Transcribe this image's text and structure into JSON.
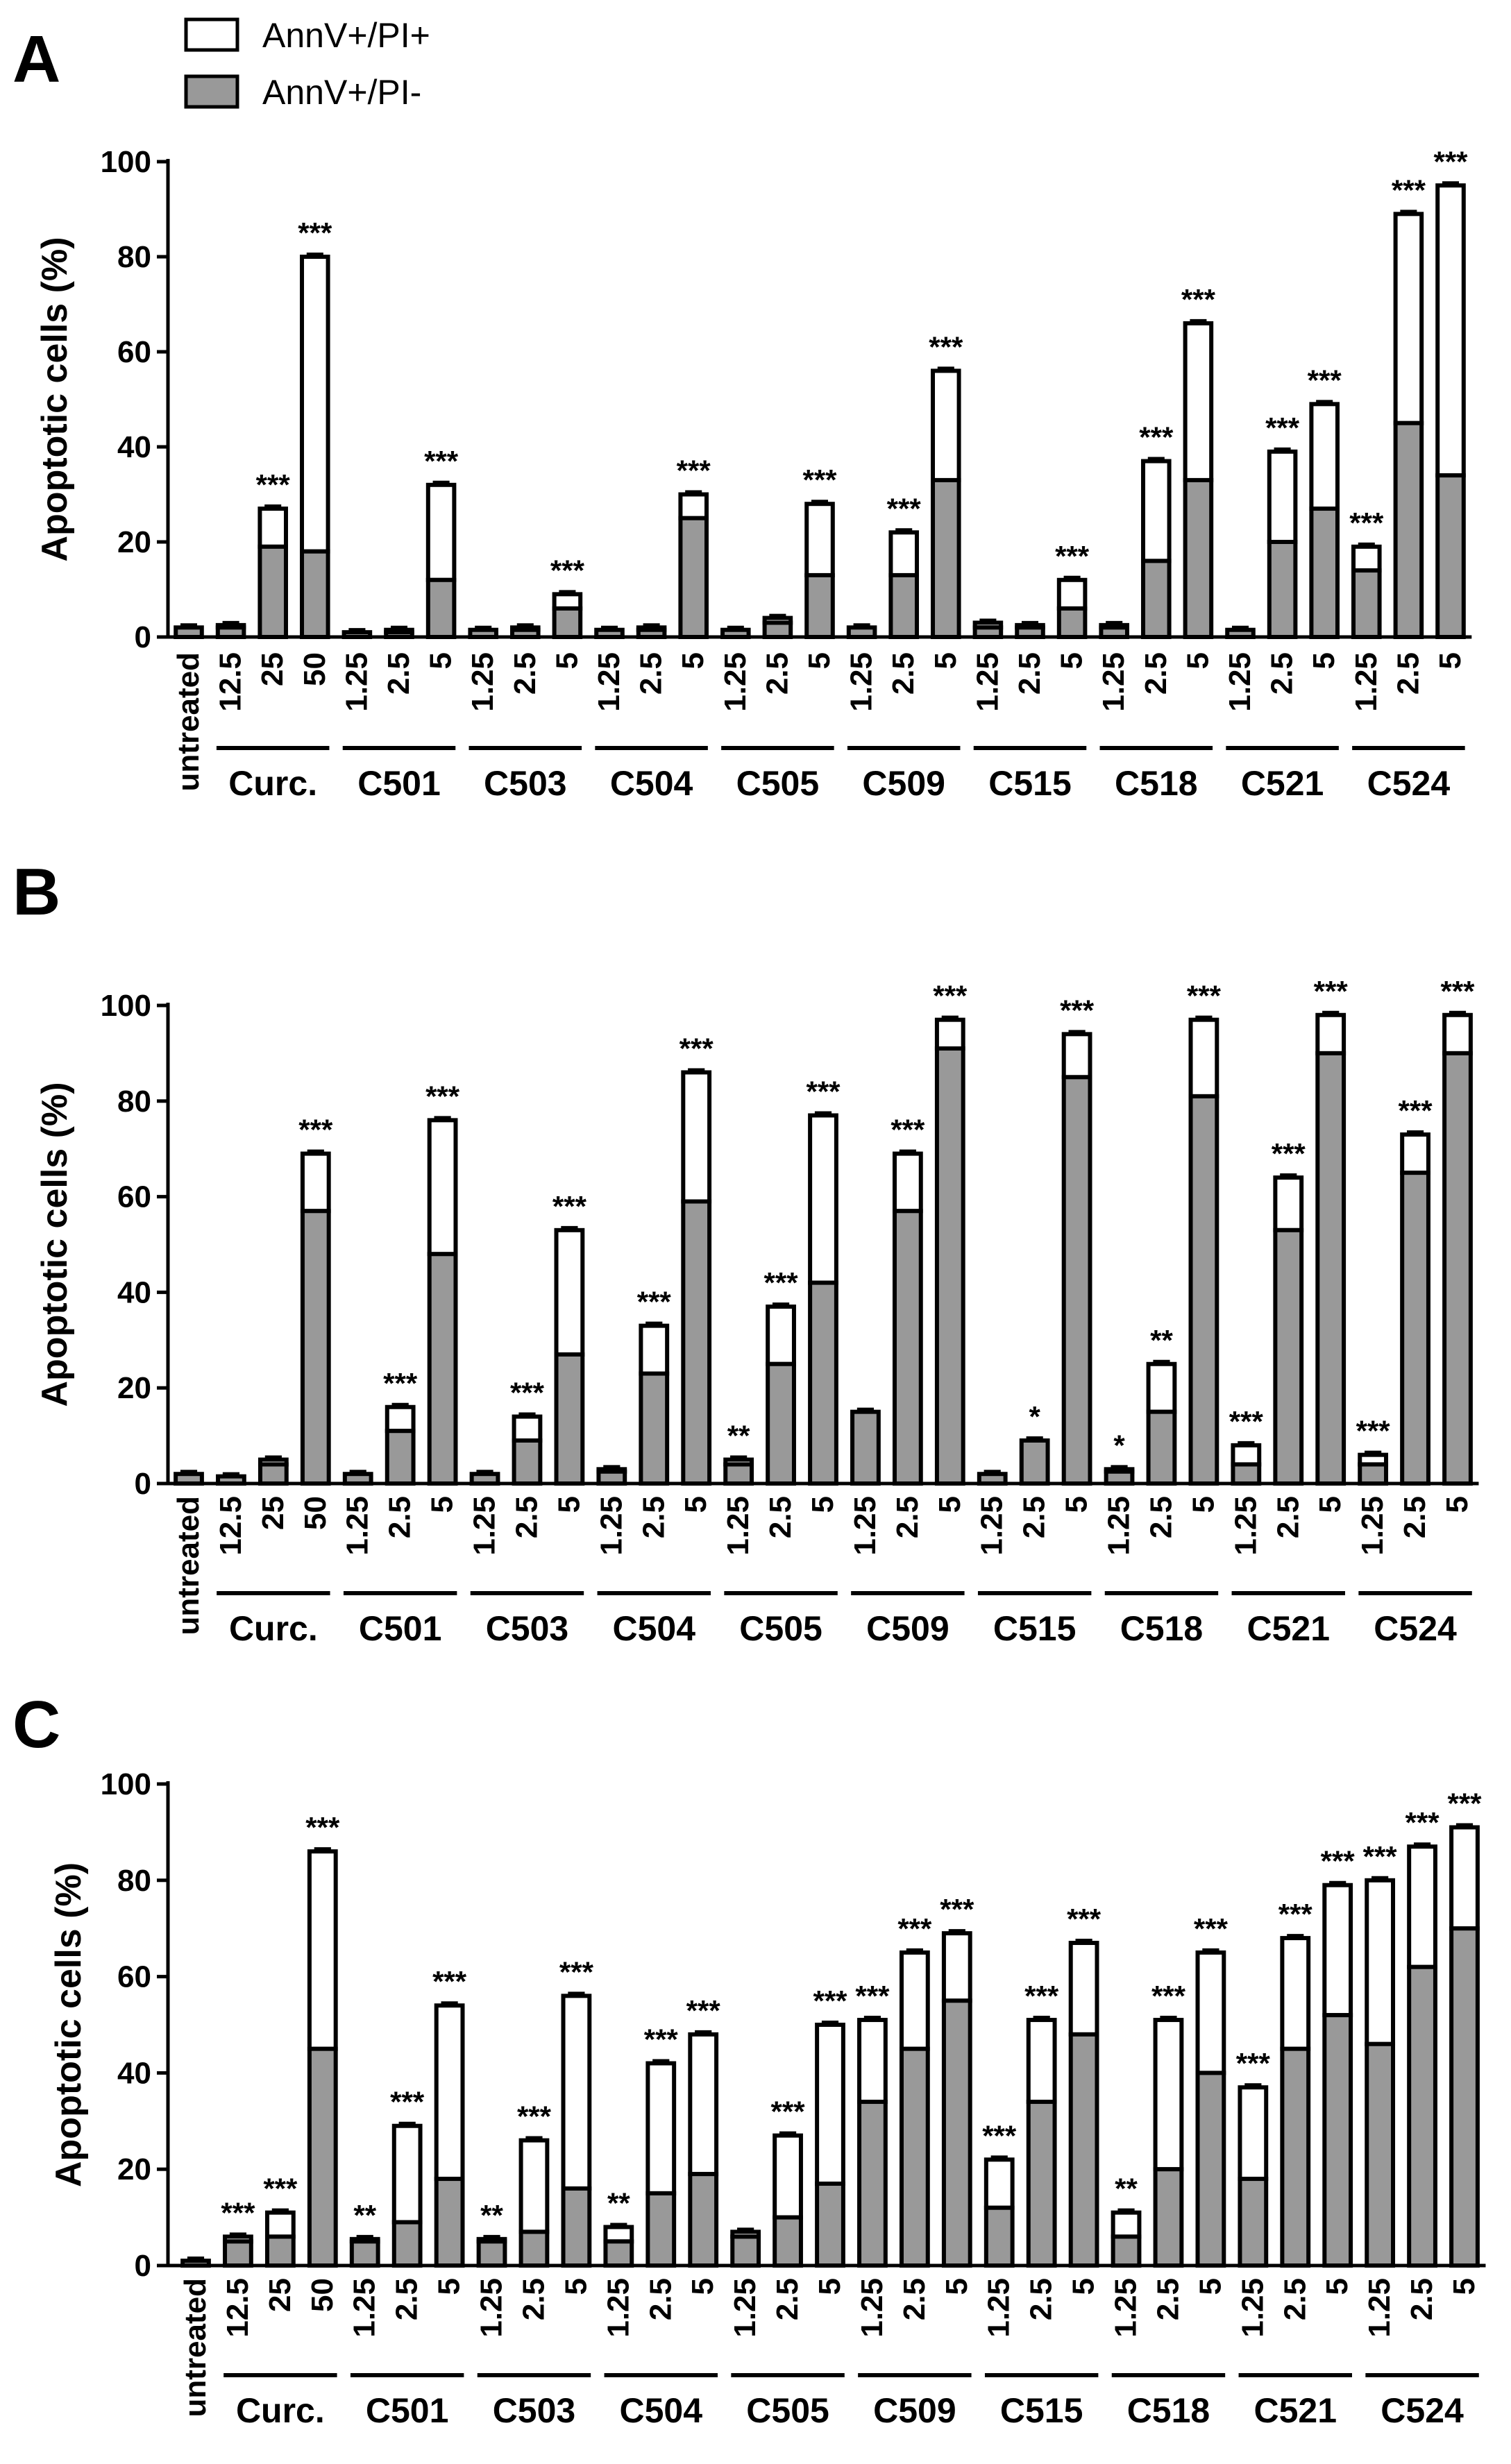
{
  "legend": [
    {
      "label": "AnnV+/PI+",
      "color": "#ffffff"
    },
    {
      "label": "AnnV+/PI-",
      "color": "#999999"
    }
  ],
  "colors": {
    "pi_neg": "#999999",
    "pi_pos": "#ffffff",
    "stroke": "#000000"
  },
  "chart_data": [
    {
      "type": "bar",
      "panel": "A",
      "stacked": true,
      "ylabel": "Apoptotic cells (%)",
      "ylim": [
        0,
        100
      ],
      "yticks": [
        0,
        20,
        40,
        60,
        80,
        100
      ],
      "groups": [
        {
          "label": "",
          "bars": [
            {
              "dose": "untreated",
              "pi_neg": 2,
              "total": 2,
              "sig": ""
            }
          ]
        },
        {
          "label": "Curc.",
          "bars": [
            {
              "dose": "12.5",
              "pi_neg": 2,
              "total": 2.5,
              "sig": ""
            },
            {
              "dose": "25",
              "pi_neg": 19,
              "total": 27,
              "sig": "***"
            },
            {
              "dose": "50",
              "pi_neg": 18,
              "total": 80,
              "sig": "***"
            }
          ]
        },
        {
          "label": "C501",
          "bars": [
            {
              "dose": "1.25",
              "pi_neg": 1,
              "total": 1,
              "sig": ""
            },
            {
              "dose": "2.5",
              "pi_neg": 1,
              "total": 1.5,
              "sig": ""
            },
            {
              "dose": "5",
              "pi_neg": 12,
              "total": 32,
              "sig": "***"
            }
          ]
        },
        {
          "label": "C503",
          "bars": [
            {
              "dose": "1.25",
              "pi_neg": 1.5,
              "total": 1.5,
              "sig": ""
            },
            {
              "dose": "2.5",
              "pi_neg": 1.5,
              "total": 2,
              "sig": ""
            },
            {
              "dose": "5",
              "pi_neg": 6,
              "total": 9,
              "sig": "***"
            }
          ]
        },
        {
          "label": "C504",
          "bars": [
            {
              "dose": "1.25",
              "pi_neg": 1.5,
              "total": 1.5,
              "sig": ""
            },
            {
              "dose": "2.5",
              "pi_neg": 1.5,
              "total": 2,
              "sig": ""
            },
            {
              "dose": "5",
              "pi_neg": 25,
              "total": 30,
              "sig": "***"
            }
          ]
        },
        {
          "label": "C505",
          "bars": [
            {
              "dose": "1.25",
              "pi_neg": 1.5,
              "total": 1.5,
              "sig": ""
            },
            {
              "dose": "2.5",
              "pi_neg": 3,
              "total": 4,
              "sig": ""
            },
            {
              "dose": "5",
              "pi_neg": 13,
              "total": 28,
              "sig": "***"
            }
          ]
        },
        {
          "label": "C509",
          "bars": [
            {
              "dose": "1.25",
              "pi_neg": 2,
              "total": 2,
              "sig": ""
            },
            {
              "dose": "2.5",
              "pi_neg": 13,
              "total": 22,
              "sig": "***"
            },
            {
              "dose": "5",
              "pi_neg": 33,
              "total": 56,
              "sig": "***"
            }
          ]
        },
        {
          "label": "C515",
          "bars": [
            {
              "dose": "1.25",
              "pi_neg": 2,
              "total": 3,
              "sig": ""
            },
            {
              "dose": "2.5",
              "pi_neg": 2,
              "total": 2.5,
              "sig": ""
            },
            {
              "dose": "5",
              "pi_neg": 6,
              "total": 12,
              "sig": "***"
            }
          ]
        },
        {
          "label": "C518",
          "bars": [
            {
              "dose": "1.25",
              "pi_neg": 2,
              "total": 2.5,
              "sig": ""
            },
            {
              "dose": "2.5",
              "pi_neg": 16,
              "total": 37,
              "sig": "***"
            },
            {
              "dose": "5",
              "pi_neg": 33,
              "total": 66,
              "sig": "***"
            }
          ]
        },
        {
          "label": "C521",
          "bars": [
            {
              "dose": "1.25",
              "pi_neg": 1.5,
              "total": 1.5,
              "sig": ""
            },
            {
              "dose": "2.5",
              "pi_neg": 20,
              "total": 39,
              "sig": "***"
            },
            {
              "dose": "5",
              "pi_neg": 27,
              "total": 49,
              "sig": "***"
            }
          ]
        },
        {
          "label": "C524",
          "bars": [
            {
              "dose": "1.25",
              "pi_neg": 14,
              "total": 19,
              "sig": "***"
            },
            {
              "dose": "2.5",
              "pi_neg": 45,
              "total": 89,
              "sig": "***"
            },
            {
              "dose": "5",
              "pi_neg": 34,
              "total": 95,
              "sig": "***"
            }
          ]
        }
      ]
    },
    {
      "type": "bar",
      "panel": "B",
      "stacked": true,
      "ylabel": "Apoptotic cells (%)",
      "ylim": [
        0,
        100
      ],
      "yticks": [
        0,
        20,
        40,
        60,
        80,
        100
      ],
      "groups": [
        {
          "label": "",
          "bars": [
            {
              "dose": "untreated",
              "pi_neg": 2,
              "total": 2,
              "sig": ""
            }
          ]
        },
        {
          "label": "Curc.",
          "bars": [
            {
              "dose": "12.5",
              "pi_neg": 1.5,
              "total": 1.5,
              "sig": ""
            },
            {
              "dose": "25",
              "pi_neg": 4,
              "total": 5,
              "sig": ""
            },
            {
              "dose": "50",
              "pi_neg": 57,
              "total": 69,
              "sig": "***"
            }
          ]
        },
        {
          "label": "C501",
          "bars": [
            {
              "dose": "1.25",
              "pi_neg": 2,
              "total": 2,
              "sig": ""
            },
            {
              "dose": "2.5",
              "pi_neg": 11,
              "total": 16,
              "sig": "***"
            },
            {
              "dose": "5",
              "pi_neg": 48,
              "total": 76,
              "sig": "***"
            }
          ]
        },
        {
          "label": "C503",
          "bars": [
            {
              "dose": "1.25",
              "pi_neg": 2,
              "total": 2,
              "sig": ""
            },
            {
              "dose": "2.5",
              "pi_neg": 9,
              "total": 14,
              "sig": "***"
            },
            {
              "dose": "5",
              "pi_neg": 27,
              "total": 53,
              "sig": "***"
            }
          ]
        },
        {
          "label": "C504",
          "bars": [
            {
              "dose": "1.25",
              "pi_neg": 2.5,
              "total": 3,
              "sig": ""
            },
            {
              "dose": "2.5",
              "pi_neg": 23,
              "total": 33,
              "sig": "***"
            },
            {
              "dose": "5",
              "pi_neg": 59,
              "total": 86,
              "sig": "***"
            }
          ]
        },
        {
          "label": "C505",
          "bars": [
            {
              "dose": "1.25",
              "pi_neg": 4,
              "total": 5,
              "sig": "**"
            },
            {
              "dose": "2.5",
              "pi_neg": 25,
              "total": 37,
              "sig": "***"
            },
            {
              "dose": "5",
              "pi_neg": 42,
              "total": 77,
              "sig": "***"
            }
          ]
        },
        {
          "label": "C509",
          "bars": [
            {
              "dose": "1.25",
              "pi_neg": 15,
              "total": 15,
              "sig": ""
            },
            {
              "dose": "2.5",
              "pi_neg": 57,
              "total": 69,
              "sig": "***"
            },
            {
              "dose": "5",
              "pi_neg": 91,
              "total": 97,
              "sig": "***"
            }
          ]
        },
        {
          "label": "C515",
          "bars": [
            {
              "dose": "1.25",
              "pi_neg": 2,
              "total": 2,
              "sig": ""
            },
            {
              "dose": "2.5",
              "pi_neg": 9,
              "total": 9,
              "sig": "*"
            },
            {
              "dose": "5",
              "pi_neg": 85,
              "total": 94,
              "sig": "***"
            }
          ]
        },
        {
          "label": "C518",
          "bars": [
            {
              "dose": "1.25",
              "pi_neg": 2.5,
              "total": 3,
              "sig": "*"
            },
            {
              "dose": "2.5",
              "pi_neg": 15,
              "total": 25,
              "sig": "**"
            },
            {
              "dose": "5",
              "pi_neg": 81,
              "total": 97,
              "sig": "***"
            }
          ]
        },
        {
          "label": "C521",
          "bars": [
            {
              "dose": "1.25",
              "pi_neg": 4,
              "total": 8,
              "sig": "***"
            },
            {
              "dose": "2.5",
              "pi_neg": 53,
              "total": 64,
              "sig": "***"
            },
            {
              "dose": "5",
              "pi_neg": 90,
              "total": 98,
              "sig": "***"
            }
          ]
        },
        {
          "label": "C524",
          "bars": [
            {
              "dose": "1.25",
              "pi_neg": 4,
              "total": 6,
              "sig": "***"
            },
            {
              "dose": "2.5",
              "pi_neg": 65,
              "total": 73,
              "sig": "***"
            },
            {
              "dose": "5",
              "pi_neg": 90,
              "total": 98,
              "sig": "***"
            }
          ]
        }
      ]
    },
    {
      "type": "bar",
      "panel": "C",
      "stacked": true,
      "ylabel": "Apoptotic cells (%)",
      "ylim": [
        0,
        100
      ],
      "yticks": [
        0,
        20,
        40,
        60,
        80,
        100
      ],
      "groups": [
        {
          "label": "",
          "bars": [
            {
              "dose": "untreated",
              "pi_neg": 1,
              "total": 1,
              "sig": ""
            }
          ]
        },
        {
          "label": "Curc.",
          "bars": [
            {
              "dose": "12.5",
              "pi_neg": 5,
              "total": 6,
              "sig": "***"
            },
            {
              "dose": "25",
              "pi_neg": 6,
              "total": 11,
              "sig": "***"
            },
            {
              "dose": "50",
              "pi_neg": 45,
              "total": 86,
              "sig": "***"
            }
          ]
        },
        {
          "label": "C501",
          "bars": [
            {
              "dose": "1.25",
              "pi_neg": 5,
              "total": 5.5,
              "sig": "**"
            },
            {
              "dose": "2.5",
              "pi_neg": 9,
              "total": 29,
              "sig": "***"
            },
            {
              "dose": "5",
              "pi_neg": 18,
              "total": 54,
              "sig": "***"
            }
          ]
        },
        {
          "label": "C503",
          "bars": [
            {
              "dose": "1.25",
              "pi_neg": 5,
              "total": 5.5,
              "sig": "**"
            },
            {
              "dose": "2.5",
              "pi_neg": 7,
              "total": 26,
              "sig": "***"
            },
            {
              "dose": "5",
              "pi_neg": 16,
              "total": 56,
              "sig": "***"
            }
          ]
        },
        {
          "label": "C504",
          "bars": [
            {
              "dose": "1.25",
              "pi_neg": 5,
              "total": 8,
              "sig": "**"
            },
            {
              "dose": "2.5",
              "pi_neg": 15,
              "total": 42,
              "sig": "***"
            },
            {
              "dose": "5",
              "pi_neg": 19,
              "total": 48,
              "sig": "***"
            }
          ]
        },
        {
          "label": "C505",
          "bars": [
            {
              "dose": "1.25",
              "pi_neg": 6,
              "total": 7,
              "sig": ""
            },
            {
              "dose": "2.5",
              "pi_neg": 10,
              "total": 27,
              "sig": "***"
            },
            {
              "dose": "5",
              "pi_neg": 17,
              "total": 50,
              "sig": "***"
            }
          ]
        },
        {
          "label": "C509",
          "bars": [
            {
              "dose": "1.25",
              "pi_neg": 34,
              "total": 51,
              "sig": "***"
            },
            {
              "dose": "2.5",
              "pi_neg": 45,
              "total": 65,
              "sig": "***"
            },
            {
              "dose": "5",
              "pi_neg": 55,
              "total": 69,
              "sig": "***"
            }
          ]
        },
        {
          "label": "C515",
          "bars": [
            {
              "dose": "1.25",
              "pi_neg": 12,
              "total": 22,
              "sig": "***"
            },
            {
              "dose": "2.5",
              "pi_neg": 34,
              "total": 51,
              "sig": "***"
            },
            {
              "dose": "5",
              "pi_neg": 48,
              "total": 67,
              "sig": "***"
            }
          ]
        },
        {
          "label": "C518",
          "bars": [
            {
              "dose": "1.25",
              "pi_neg": 6,
              "total": 11,
              "sig": "**"
            },
            {
              "dose": "2.5",
              "pi_neg": 20,
              "total": 51,
              "sig": "***"
            },
            {
              "dose": "5",
              "pi_neg": 40,
              "total": 65,
              "sig": "***"
            }
          ]
        },
        {
          "label": "C521",
          "bars": [
            {
              "dose": "1.25",
              "pi_neg": 18,
              "total": 37,
              "sig": "***"
            },
            {
              "dose": "2.5",
              "pi_neg": 45,
              "total": 68,
              "sig": "***"
            },
            {
              "dose": "5",
              "pi_neg": 52,
              "total": 79,
              "sig": "***"
            }
          ]
        },
        {
          "label": "C524",
          "bars": [
            {
              "dose": "1.25",
              "pi_neg": 46,
              "total": 80,
              "sig": "***"
            },
            {
              "dose": "2.5",
              "pi_neg": 62,
              "total": 87,
              "sig": "***"
            },
            {
              "dose": "5",
              "pi_neg": 70,
              "total": 91,
              "sig": "***"
            }
          ]
        }
      ]
    }
  ]
}
